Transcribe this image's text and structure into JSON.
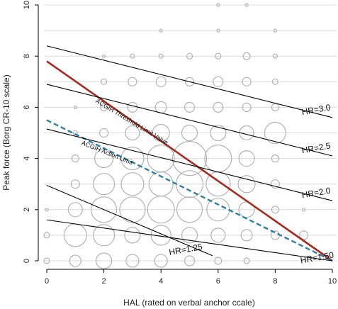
{
  "chart_data": {
    "type": "scatter",
    "xlabel": "HAL (rated on verbal anchor ccale)",
    "ylabel": "Peak force (Borg CR-10 scale)",
    "xlim": [
      0,
      10
    ],
    "ylim": [
      0,
      10
    ],
    "xticks": [
      0,
      2,
      4,
      6,
      8,
      10
    ],
    "yticks": [
      0,
      2,
      4,
      6,
      8,
      10
    ],
    "grid": "horizontal",
    "colors": {
      "bubble": "#b3b3b3",
      "grid": "#d9d9d9",
      "tlv": "#a52a1c",
      "action": "#2e7fa6",
      "hr": "#000000"
    },
    "bubbles": [
      {
        "x": 0,
        "y": 0,
        "r": 4
      },
      {
        "x": 1,
        "y": 0,
        "r": 8
      },
      {
        "x": 2,
        "y": 0,
        "r": 11
      },
      {
        "x": 3,
        "y": 0,
        "r": 9
      },
      {
        "x": 4,
        "y": 0,
        "r": 9
      },
      {
        "x": 5,
        "y": 0,
        "r": 7
      },
      {
        "x": 6,
        "y": 0,
        "r": 5
      },
      {
        "x": 7,
        "y": 0,
        "r": 4
      },
      {
        "x": 0,
        "y": 1,
        "r": 4
      },
      {
        "x": 1,
        "y": 1,
        "r": 16
      },
      {
        "x": 2,
        "y": 1,
        "r": 15
      },
      {
        "x": 3,
        "y": 1,
        "r": 11
      },
      {
        "x": 4,
        "y": 1,
        "r": 14
      },
      {
        "x": 5,
        "y": 1,
        "r": 11
      },
      {
        "x": 6,
        "y": 1,
        "r": 10
      },
      {
        "x": 7,
        "y": 1,
        "r": 8
      },
      {
        "x": 8,
        "y": 1,
        "r": 6
      },
      {
        "x": 9,
        "y": 1,
        "r": 6
      },
      {
        "x": 0,
        "y": 2,
        "r": 2
      },
      {
        "x": 1,
        "y": 2,
        "r": 10
      },
      {
        "x": 2,
        "y": 2,
        "r": 18
      },
      {
        "x": 3,
        "y": 2,
        "r": 18
      },
      {
        "x": 4,
        "y": 2,
        "r": 19
      },
      {
        "x": 5,
        "y": 2,
        "r": 18
      },
      {
        "x": 6,
        "y": 2,
        "r": 16
      },
      {
        "x": 7,
        "y": 2,
        "r": 11
      },
      {
        "x": 8,
        "y": 2,
        "r": 5
      },
      {
        "x": 9,
        "y": 2,
        "r": 2
      },
      {
        "x": 1,
        "y": 3,
        "r": 6
      },
      {
        "x": 2,
        "y": 3,
        "r": 15
      },
      {
        "x": 3,
        "y": 3,
        "r": 16
      },
      {
        "x": 4,
        "y": 3,
        "r": 17
      },
      {
        "x": 5,
        "y": 3,
        "r": 19
      },
      {
        "x": 6,
        "y": 3,
        "r": 17
      },
      {
        "x": 7,
        "y": 3,
        "r": 12
      },
      {
        "x": 8,
        "y": 3,
        "r": 6
      },
      {
        "x": 1,
        "y": 4,
        "r": 5
      },
      {
        "x": 2,
        "y": 4,
        "r": 13
      },
      {
        "x": 3,
        "y": 4,
        "r": 16
      },
      {
        "x": 4,
        "y": 4,
        "r": 19
      },
      {
        "x": 5,
        "y": 4,
        "r": 24
      },
      {
        "x": 6,
        "y": 4,
        "r": 19
      },
      {
        "x": 7,
        "y": 4,
        "r": 11
      },
      {
        "x": 8,
        "y": 4,
        "r": 5
      },
      {
        "x": 1,
        "y": 5,
        "r": 3
      },
      {
        "x": 2,
        "y": 5,
        "r": 6
      },
      {
        "x": 3,
        "y": 5,
        "r": 10
      },
      {
        "x": 4,
        "y": 5,
        "r": 12
      },
      {
        "x": 5,
        "y": 5,
        "r": 11
      },
      {
        "x": 6,
        "y": 5,
        "r": 11
      },
      {
        "x": 7,
        "y": 5,
        "r": 10
      },
      {
        "x": 8,
        "y": 5,
        "r": 15
      },
      {
        "x": 1,
        "y": 6,
        "r": 2
      },
      {
        "x": 2,
        "y": 6,
        "r": 5
      },
      {
        "x": 3,
        "y": 6,
        "r": 7
      },
      {
        "x": 4,
        "y": 6,
        "r": 8
      },
      {
        "x": 5,
        "y": 6,
        "r": 7
      },
      {
        "x": 6,
        "y": 6,
        "r": 7
      },
      {
        "x": 7,
        "y": 6,
        "r": 6
      },
      {
        "x": 8,
        "y": 6,
        "r": 5
      },
      {
        "x": 2,
        "y": 7,
        "r": 4
      },
      {
        "x": 3,
        "y": 7,
        "r": 6
      },
      {
        "x": 4,
        "y": 7,
        "r": 7
      },
      {
        "x": 5,
        "y": 7,
        "r": 6
      },
      {
        "x": 6,
        "y": 7,
        "r": 7
      },
      {
        "x": 7,
        "y": 7,
        "r": 6
      },
      {
        "x": 8,
        "y": 7,
        "r": 4
      },
      {
        "x": 2,
        "y": 8,
        "r": 2
      },
      {
        "x": 3,
        "y": 8,
        "r": 3
      },
      {
        "x": 4,
        "y": 8,
        "r": 3
      },
      {
        "x": 5,
        "y": 8,
        "r": 4
      },
      {
        "x": 6,
        "y": 8,
        "r": 4
      },
      {
        "x": 7,
        "y": 8,
        "r": 5
      },
      {
        "x": 8,
        "y": 8,
        "r": 3
      },
      {
        "x": 4,
        "y": 9,
        "r": 2
      },
      {
        "x": 6,
        "y": 9,
        "r": 2
      },
      {
        "x": 8,
        "y": 9,
        "r": 2
      },
      {
        "x": 6,
        "y": 10,
        "r": 2
      },
      {
        "x": 7,
        "y": 10,
        "r": 2
      }
    ],
    "lines": [
      {
        "name": "TLV",
        "style": "solid-thick",
        "from": [
          0,
          7.8
        ],
        "to": [
          10,
          0
        ]
      },
      {
        "name": "Action",
        "style": "dashed",
        "from": [
          0,
          5.5
        ],
        "to": [
          10,
          0
        ]
      },
      {
        "name": "HR=3.0",
        "style": "thin",
        "from": [
          0,
          8.4
        ],
        "to": [
          10,
          5.6
        ]
      },
      {
        "name": "HR=2.5",
        "style": "thin",
        "from": [
          0,
          6.9
        ],
        "to": [
          10,
          4.1
        ]
      },
      {
        "name": "HR=2.0",
        "style": "thin",
        "from": [
          0,
          5.15
        ],
        "to": [
          10,
          2.35
        ]
      },
      {
        "name": "HR=1.25",
        "style": "thin",
        "from": [
          0,
          2.95
        ],
        "to": [
          5.8,
          0.2
        ]
      },
      {
        "name": "HR=1.50",
        "style": "thin",
        "from": [
          0,
          1.6
        ],
        "to": [
          10,
          0
        ]
      }
    ],
    "annotations": [
      {
        "text": "ACGIH Threshold Limit Value",
        "x": 1.7,
        "y": 6.2,
        "angle": 31,
        "size": 9
      },
      {
        "text": "ACGIH Action Limit",
        "x": 1.2,
        "y": 4.55,
        "angle": 22,
        "size": 9
      },
      {
        "text": "HR=3.0",
        "x": 8.95,
        "y": 5.7,
        "angle": -10,
        "size": 12
      },
      {
        "text": "HR=2.5",
        "x": 8.95,
        "y": 4.2,
        "angle": -10,
        "size": 12
      },
      {
        "text": "HR=2.0",
        "x": 8.95,
        "y": 2.45,
        "angle": -10,
        "size": 12
      },
      {
        "text": "HR=1.25",
        "x": 4.3,
        "y": 0.22,
        "angle": -10,
        "size": 12
      },
      {
        "text": "HR=1.50",
        "x": 8.9,
        "y": -0.1,
        "angle": -10,
        "size": 12
      }
    ]
  }
}
